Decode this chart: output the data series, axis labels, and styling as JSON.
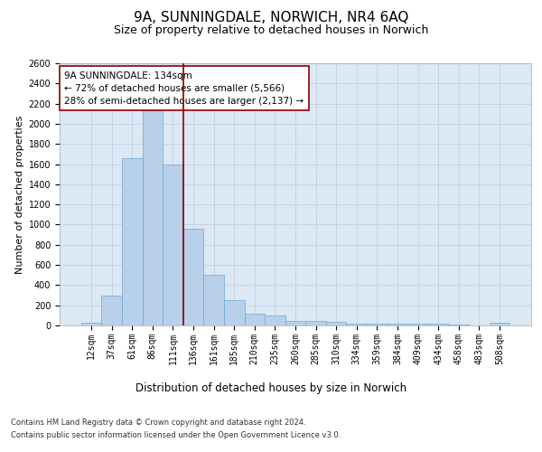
{
  "title": "9A, SUNNINGDALE, NORWICH, NR4 6AQ",
  "subtitle": "Size of property relative to detached houses in Norwich",
  "xlabel": "Distribution of detached houses by size in Norwich",
  "ylabel": "Number of detached properties",
  "footnote1": "Contains HM Land Registry data © Crown copyright and database right 2024.",
  "footnote2": "Contains public sector information licensed under the Open Government Licence v3.0.",
  "annotation_line1": "9A SUNNINGDALE: 134sqm",
  "annotation_line2": "← 72% of detached houses are smaller (5,566)",
  "annotation_line3": "28% of semi-detached houses are larger (2,137) →",
  "bar_categories": [
    "12sqm",
    "37sqm",
    "61sqm",
    "86sqm",
    "111sqm",
    "136sqm",
    "161sqm",
    "185sqm",
    "210sqm",
    "235sqm",
    "260sqm",
    "285sqm",
    "310sqm",
    "334sqm",
    "359sqm",
    "384sqm",
    "409sqm",
    "434sqm",
    "458sqm",
    "483sqm",
    "508sqm"
  ],
  "bar_values": [
    25,
    300,
    1660,
    2130,
    1600,
    960,
    500,
    248,
    120,
    100,
    48,
    48,
    35,
    20,
    20,
    20,
    15,
    20,
    5,
    0,
    25
  ],
  "bar_color": "#b8d0ea",
  "bar_edge_color": "#6aaad4",
  "vline_x_index": 4.5,
  "vline_color": "#8b0000",
  "ylim": [
    0,
    2600
  ],
  "yticks": [
    0,
    200,
    400,
    600,
    800,
    1000,
    1200,
    1400,
    1600,
    1800,
    2000,
    2200,
    2400,
    2600
  ],
  "grid_color": "#c0d0e0",
  "background_color": "#dce8f4",
  "annotation_box_edge_color": "#8b0000",
  "title_fontsize": 11,
  "subtitle_fontsize": 9,
  "xlabel_fontsize": 8.5,
  "ylabel_fontsize": 8,
  "tick_fontsize": 7,
  "annotation_fontsize": 7.5,
  "footnote_fontsize": 6
}
